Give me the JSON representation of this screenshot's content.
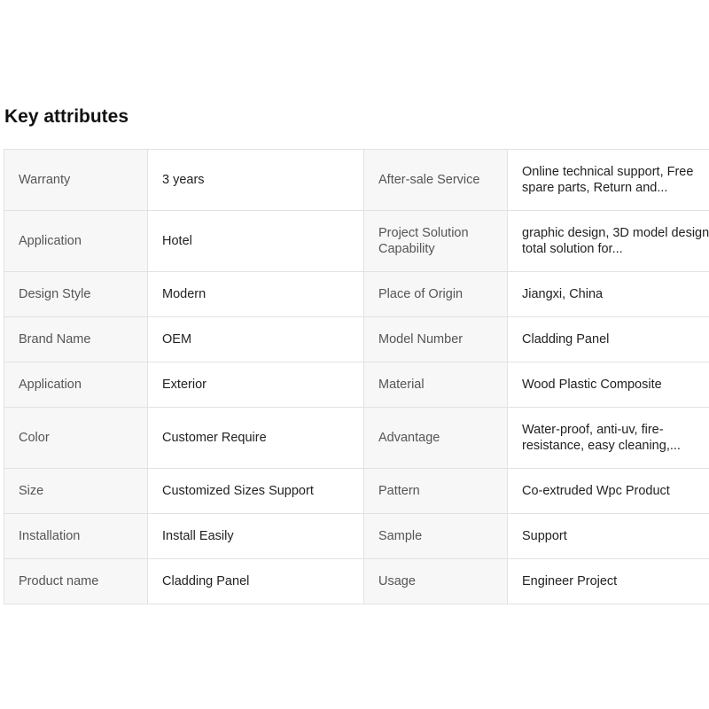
{
  "title": "Key attributes",
  "rows": [
    {
      "k1": "Warranty",
      "v1": "3 years",
      "k2": "After-sale Service",
      "v2": "Online technical support, Free spare parts, Return and..."
    },
    {
      "k1": "Application",
      "v1": "Hotel",
      "k2": "Project Solution Capability",
      "v2": "graphic design, 3D model design, total solution for..."
    },
    {
      "k1": "Design Style",
      "v1": "Modern",
      "k2": "Place of Origin",
      "v2": "Jiangxi, China"
    },
    {
      "k1": "Brand Name",
      "v1": "OEM",
      "k2": "Model Number",
      "v2": "Cladding Panel"
    },
    {
      "k1": "Application",
      "v1": "Exterior",
      "k2": "Material",
      "v2": "Wood Plastic Composite"
    },
    {
      "k1": "Color",
      "v1": "Customer Require",
      "k2": "Advantage",
      "v2": "Water-proof, anti-uv, fire-resistance, easy cleaning,..."
    },
    {
      "k1": "Size",
      "v1": "Customized Sizes Support",
      "k2": "Pattern",
      "v2": "Co-extruded Wpc Product"
    },
    {
      "k1": "Installation",
      "v1": "Install Easily",
      "k2": "Sample",
      "v2": "Support"
    },
    {
      "k1": "Product name",
      "v1": "Cladding Panel",
      "k2": "Usage",
      "v2": "Engineer Project"
    }
  ]
}
